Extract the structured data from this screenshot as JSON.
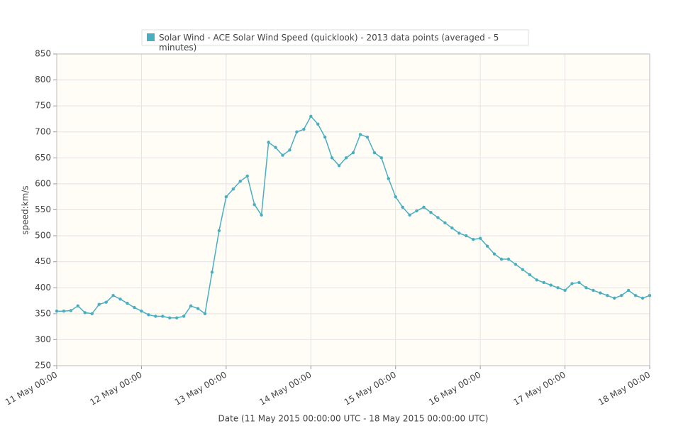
{
  "chart_data": {
    "type": "line",
    "legend": "Solar Wind - ACE Solar Wind Speed (quicklook) - 2013 data points (averaged - 5 minutes)",
    "x_label": "Date (11 May 2015 00:00:00 UTC - 18 May 2015 00:00:00 UTC)",
    "y_label": "speed:km/s",
    "color": "#49aec2",
    "grid": true,
    "xlim": [
      "11 May 00:00",
      "18 May 00:00"
    ],
    "xticks": [
      "11 May 00:00",
      "12 May 00:00",
      "13 May 00:00",
      "14 May 00:00",
      "15 May 00:00",
      "16 May 00:00",
      "17 May 00:00",
      "18 May 00:00"
    ],
    "ylim": [
      250,
      850
    ],
    "yticks": [
      250,
      300,
      350,
      400,
      450,
      500,
      550,
      600,
      650,
      700,
      750,
      800,
      850
    ],
    "x": [
      "11 May 00:00",
      "11 May 02:00",
      "11 May 04:00",
      "11 May 06:00",
      "11 May 08:00",
      "11 May 10:00",
      "11 May 12:00",
      "11 May 14:00",
      "11 May 16:00",
      "11 May 18:00",
      "11 May 20:00",
      "11 May 22:00",
      "12 May 00:00",
      "12 May 02:00",
      "12 May 04:00",
      "12 May 06:00",
      "12 May 08:00",
      "12 May 10:00",
      "12 May 12:00",
      "12 May 14:00",
      "12 May 16:00",
      "12 May 18:00",
      "12 May 20:00",
      "12 May 22:00",
      "13 May 00:00",
      "13 May 02:00",
      "13 May 04:00",
      "13 May 06:00",
      "13 May 08:00",
      "13 May 10:00",
      "13 May 12:00",
      "13 May 14:00",
      "13 May 16:00",
      "13 May 18:00",
      "13 May 20:00",
      "13 May 22:00",
      "14 May 00:00",
      "14 May 02:00",
      "14 May 04:00",
      "14 May 06:00",
      "14 May 08:00",
      "14 May 10:00",
      "14 May 12:00",
      "14 May 14:00",
      "14 May 16:00",
      "14 May 18:00",
      "14 May 20:00",
      "14 May 22:00",
      "15 May 00:00",
      "15 May 02:00",
      "15 May 04:00",
      "15 May 06:00",
      "15 May 08:00",
      "15 May 10:00",
      "15 May 12:00",
      "15 May 14:00",
      "15 May 16:00",
      "15 May 18:00",
      "15 May 20:00",
      "15 May 22:00",
      "16 May 00:00",
      "16 May 02:00",
      "16 May 04:00",
      "16 May 06:00",
      "16 May 08:00",
      "16 May 10:00",
      "16 May 12:00",
      "16 May 14:00",
      "16 May 16:00",
      "16 May 18:00",
      "16 May 20:00",
      "16 May 22:00",
      "17 May 00:00",
      "17 May 02:00",
      "17 May 04:00",
      "17 May 06:00",
      "17 May 08:00",
      "17 May 10:00",
      "17 May 12:00",
      "17 May 14:00",
      "17 May 16:00",
      "17 May 18:00",
      "17 May 20:00",
      "17 May 22:00",
      "18 May 00:00"
    ],
    "values": [
      355,
      355,
      356,
      365,
      352,
      350,
      368,
      372,
      385,
      378,
      370,
      362,
      355,
      348,
      345,
      345,
      342,
      342,
      345,
      365,
      360,
      350,
      430,
      510,
      575,
      590,
      605,
      615,
      560,
      540,
      680,
      670,
      655,
      665,
      700,
      705,
      730,
      715,
      690,
      650,
      635,
      650,
      660,
      695,
      690,
      660,
      650,
      610,
      575,
      555,
      540,
      548,
      555,
      545,
      535,
      525,
      515,
      505,
      500,
      493,
      495,
      480,
      465,
      455,
      455,
      445,
      435,
      425,
      415,
      410,
      405,
      400,
      395,
      408,
      410,
      400,
      395,
      390,
      385,
      380,
      385,
      395,
      385,
      380,
      385
    ]
  }
}
